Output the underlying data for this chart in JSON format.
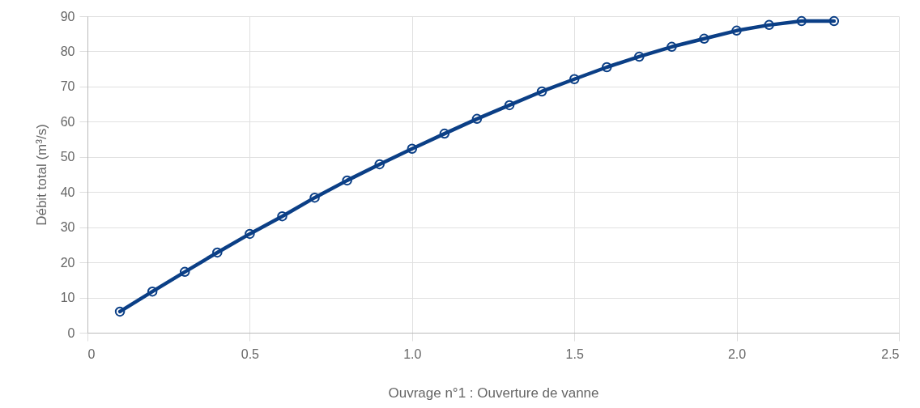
{
  "chart_data": {
    "type": "line",
    "xlabel": "Ouvrage n°1 : Ouverture de vanne",
    "ylabel": "Débit total (m³/s)",
    "x": [
      0.1,
      0.2,
      0.3,
      0.4,
      0.5,
      0.6,
      0.7,
      0.8,
      0.9,
      1.0,
      1.1,
      1.2,
      1.3,
      1.4,
      1.5,
      1.6,
      1.7,
      1.8,
      1.9,
      2.0,
      2.1,
      2.2,
      2.3
    ],
    "series": [
      {
        "color": "#0b3f86",
        "values": [
          6.0,
          11.7,
          17.3,
          22.8,
          28.1,
          33.1,
          38.4,
          43.3,
          47.9,
          52.3,
          56.6,
          60.8,
          64.7,
          68.6,
          72.1,
          75.5,
          78.5,
          81.3,
          83.6,
          85.9,
          87.5,
          88.6,
          88.6
        ]
      }
    ],
    "xlim": [
      0,
      2.5
    ],
    "xticks": [
      0,
      0.5,
      {
        "value": 1,
        "label": "1.0"
      },
      1.5,
      {
        "value": 2,
        "label": "2.0"
      },
      2.5
    ],
    "ylim": [
      0,
      90
    ],
    "yticks": [
      0,
      10,
      20,
      30,
      40,
      50,
      60,
      70,
      80,
      90
    ],
    "grid": true,
    "marker": "circle",
    "line_style": "solid"
  }
}
